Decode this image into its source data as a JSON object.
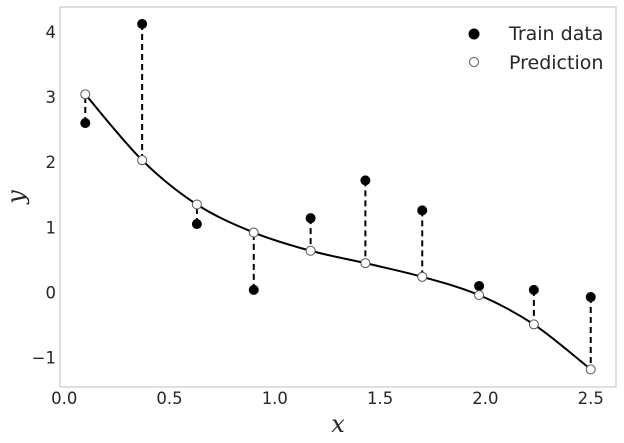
{
  "chart_data": {
    "type": "scatter",
    "title": "",
    "xlabel": "x",
    "ylabel": "y",
    "xlim": [
      -0.02,
      2.62
    ],
    "ylim": [
      -1.45,
      4.38
    ],
    "xticks": [
      0.0,
      0.5,
      1.0,
      1.5,
      2.0,
      2.5
    ],
    "xtick_labels": [
      "0.0",
      "0.5",
      "1.0",
      "1.5",
      "2.0",
      "2.5"
    ],
    "yticks": [
      -1,
      0,
      1,
      2,
      3,
      4
    ],
    "ytick_labels": [
      "−1",
      "0",
      "1",
      "2",
      "3",
      "4"
    ],
    "grid": false,
    "legend_position": "top-right",
    "series": [
      {
        "name": "Train data",
        "marker": "filled-circle",
        "color": "#000000",
        "x": [
          0.1,
          0.37,
          0.63,
          0.9,
          1.17,
          1.43,
          1.7,
          1.97,
          2.23,
          2.5
        ],
        "y": [
          2.6,
          4.12,
          1.05,
          0.04,
          1.14,
          1.72,
          1.26,
          0.1,
          0.04,
          -0.07
        ]
      },
      {
        "name": "Prediction",
        "marker": "open-circle",
        "color": "#ffffff",
        "x": [
          0.1,
          0.37,
          0.63,
          0.9,
          1.17,
          1.43,
          1.7,
          1.97,
          2.23,
          2.5
        ],
        "y": [
          3.04,
          2.03,
          1.35,
          0.92,
          0.64,
          0.45,
          0.24,
          -0.04,
          -0.49,
          -1.18
        ]
      }
    ],
    "fit_curve": {
      "x": [
        0.1,
        0.37,
        0.63,
        0.9,
        1.17,
        1.43,
        1.7,
        1.97,
        2.23,
        2.5
      ],
      "y": [
        3.04,
        2.03,
        1.35,
        0.92,
        0.64,
        0.45,
        0.24,
        -0.04,
        -0.49,
        -1.18
      ]
    },
    "residual_lines": "dashed"
  }
}
